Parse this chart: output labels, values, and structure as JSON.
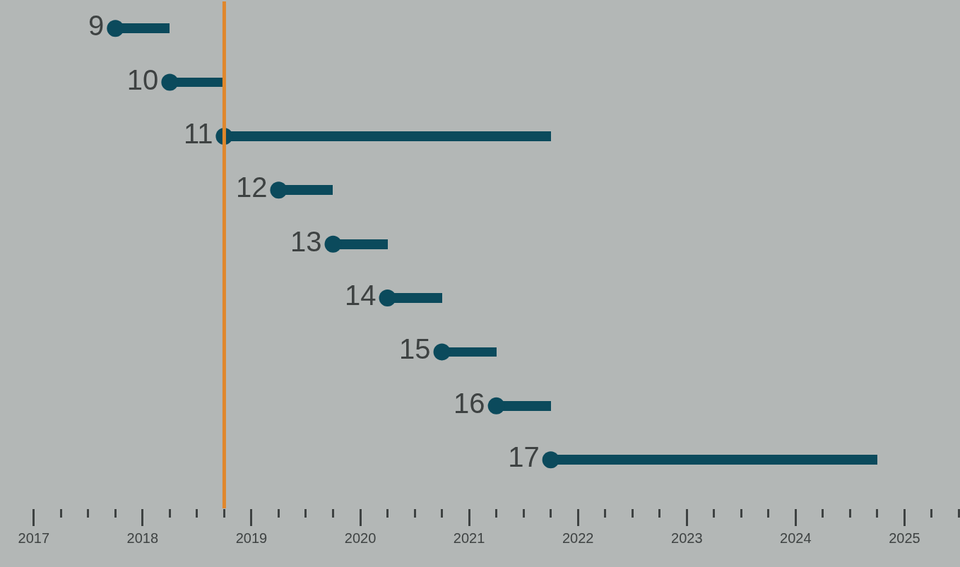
{
  "chart_data": {
    "type": "bar",
    "orientation": "horizontal",
    "categories": [
      "9",
      "10",
      "11",
      "12",
      "13",
      "14",
      "15",
      "16",
      "17"
    ],
    "series": [
      {
        "color": "#0b4a5c",
        "base": [
          2017.75,
          2018.25,
          2018.75,
          2019.25,
          2019.75,
          2020.25,
          2020.75,
          2021.25,
          2021.75
        ],
        "values": [
          0.5,
          0.5,
          3,
          0.5,
          0.5,
          0.5,
          0.5,
          0.5,
          3
        ]
      },
      {
        "type": "scatter",
        "color": "#0b4a5c",
        "values": [
          2017.75,
          2018.25,
          2018.75,
          2019.25,
          2019.75,
          2020.25,
          2020.75,
          2021.25,
          2021.75
        ]
      }
    ],
    "marker": "circle",
    "grid": false,
    "tick_labels": "x",
    "xlim": [
      2016.69,
      2025.51
    ],
    "xticks": [
      2017,
      {
        "value": 2017.25,
        "label": null
      },
      {
        "value": 2017.5,
        "label": null
      },
      {
        "value": 2017.75,
        "label": null
      },
      2018,
      {
        "value": 2018.25,
        "label": null
      },
      {
        "value": 2018.5,
        "label": null
      },
      {
        "value": 2018.75,
        "label": null
      },
      2019,
      {
        "value": 2019.25,
        "label": null
      },
      {
        "value": 2019.5,
        "label": null
      },
      {
        "value": 2019.75,
        "label": null
      },
      2020,
      {
        "value": 2020.25,
        "label": null
      },
      {
        "value": 2020.5,
        "label": null
      },
      {
        "value": 2020.75,
        "label": null
      },
      2021,
      {
        "value": 2021.25,
        "label": null
      },
      {
        "value": 2021.5,
        "label": null
      },
      {
        "value": 2021.75,
        "label": null
      },
      2022,
      {
        "value": 2022.25,
        "label": null
      },
      {
        "value": 2022.5,
        "label": null
      },
      {
        "value": 2022.75,
        "label": null
      },
      2023,
      {
        "value": 2023.25,
        "label": null
      },
      {
        "value": 2023.5,
        "label": null
      },
      {
        "value": 2023.75,
        "label": null
      },
      2024,
      {
        "value": 2024.25,
        "label": null
      },
      {
        "value": 2024.5,
        "label": null
      },
      {
        "value": 2024.75,
        "label": null
      },
      2025,
      {
        "value": 2025.25,
        "label": null
      },
      {
        "value": 2025.5,
        "label": null
      }
    ],
    "ref_lines": [
      {
        "axis": "x",
        "value": 2018.75,
        "color": "#e0872c"
      }
    ]
  }
}
